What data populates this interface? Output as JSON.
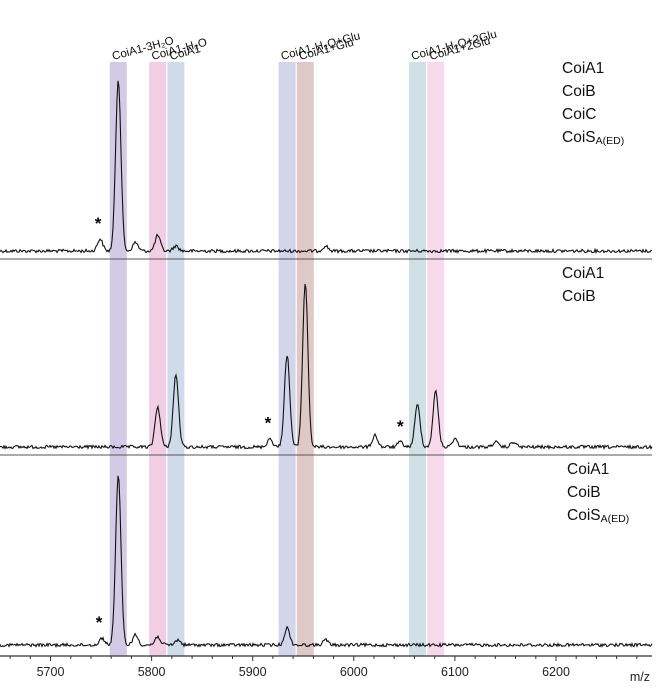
{
  "chart_data": {
    "type": "line",
    "xlabel": "m/z",
    "xlim": [
      5650,
      6295
    ],
    "x_ticks": [
      5700,
      5800,
      5900,
      6000,
      6100,
      6200
    ],
    "grid": false,
    "bands": [
      {
        "label": "CoiA1-3H₂O",
        "center": 5767,
        "color": "#c9c0e0"
      },
      {
        "label": "CoiA1-H₂O",
        "center": 5806,
        "color": "#efc3de"
      },
      {
        "label": "CoiA1",
        "center": 5824,
        "color": "#c5d3e6"
      },
      {
        "label": "CoiA1-H₂O+Glu",
        "center": 5934,
        "color": "#c9cce6"
      },
      {
        "label": "CoiA1+Glu",
        "center": 5952,
        "color": "#d8bcbc"
      },
      {
        "label": "CoiA1-H₂O+2Glu",
        "center": 6063,
        "color": "#c5d9e2"
      },
      {
        "label": "CoiA1+2Glu",
        "center": 6081,
        "color": "#f4d2e8"
      }
    ],
    "panels": [
      {
        "legend": [
          {
            "main": "CoiA1",
            "sub": ""
          },
          {
            "main": "CoiB",
            "sub": ""
          },
          {
            "main": "CoiC",
            "sub": ""
          },
          {
            "main": "CoiS",
            "sub": "A(ED)"
          }
        ],
        "peaks": [
          [
            5749,
            0.07
          ],
          [
            5767,
            1.0
          ],
          [
            5784,
            0.05
          ],
          [
            5806,
            0.09
          ],
          [
            5824,
            0.03
          ],
          [
            5972,
            0.03
          ]
        ],
        "stars": [
          5747
        ]
      },
      {
        "legend": [
          {
            "main": "CoiA1",
            "sub": ""
          },
          {
            "main": "CoiB",
            "sub": ""
          }
        ],
        "peaks": [
          [
            5806,
            0.24
          ],
          [
            5824,
            0.43
          ],
          [
            5917,
            0.05
          ],
          [
            5934,
            0.55
          ],
          [
            5952,
            0.98
          ],
          [
            6021,
            0.07
          ],
          [
            6046,
            0.03
          ],
          [
            6063,
            0.25
          ],
          [
            6081,
            0.33
          ],
          [
            6100,
            0.05
          ],
          [
            6140,
            0.03
          ],
          [
            6158,
            0.03
          ]
        ],
        "stars": [
          5915,
          6046
        ]
      },
      {
        "legend": [
          {
            "main": "CoiA1",
            "sub": ""
          },
          {
            "main": "CoiB",
            "sub": ""
          },
          {
            "main": "CoiS",
            "sub": "A(ED)"
          }
        ],
        "peaks": [
          [
            5751,
            0.04
          ],
          [
            5767,
            1.0
          ],
          [
            5784,
            0.06
          ],
          [
            5806,
            0.05
          ],
          [
            5826,
            0.03
          ],
          [
            5934,
            0.1
          ],
          [
            5972,
            0.03
          ]
        ],
        "stars": [
          5748
        ]
      }
    ]
  }
}
